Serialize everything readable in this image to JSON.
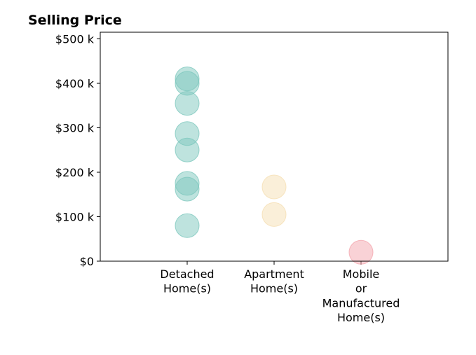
{
  "chart_data": {
    "type": "scatter",
    "title": "Selling Price",
    "xlabel": "",
    "ylabel": "",
    "categories": [
      "Detached Home(s)",
      "Apartment Home(s)",
      "Mobile or Manufactured Home(s)"
    ],
    "category_tick_lines": [
      [
        "Detached",
        "Home(s)"
      ],
      [
        "Apartment",
        "Home(s)"
      ],
      [
        "Mobile",
        "or",
        "Manufactured",
        "Home(s)"
      ]
    ],
    "y_ticks": [
      0,
      100000,
      200000,
      300000,
      400000,
      500000
    ],
    "y_tick_labels": [
      "$0",
      "$100 k",
      "$200 k",
      "$300 k",
      "$400 k",
      "$500 k"
    ],
    "ylim": [
      0,
      515000
    ],
    "grid": false,
    "series": [
      {
        "category": "Detached Home(s)",
        "color": "#7ec8be",
        "values": [
          410000,
          400000,
          355000,
          287000,
          250000,
          175000,
          162000,
          80000
        ]
      },
      {
        "category": "Apartment Home(s)",
        "color": "#f5dfb3",
        "values": [
          167000,
          105000
        ]
      },
      {
        "category": "Mobile or Manufactured Home(s)",
        "color": "#f4a6ae",
        "values": [
          20000
        ]
      }
    ]
  }
}
